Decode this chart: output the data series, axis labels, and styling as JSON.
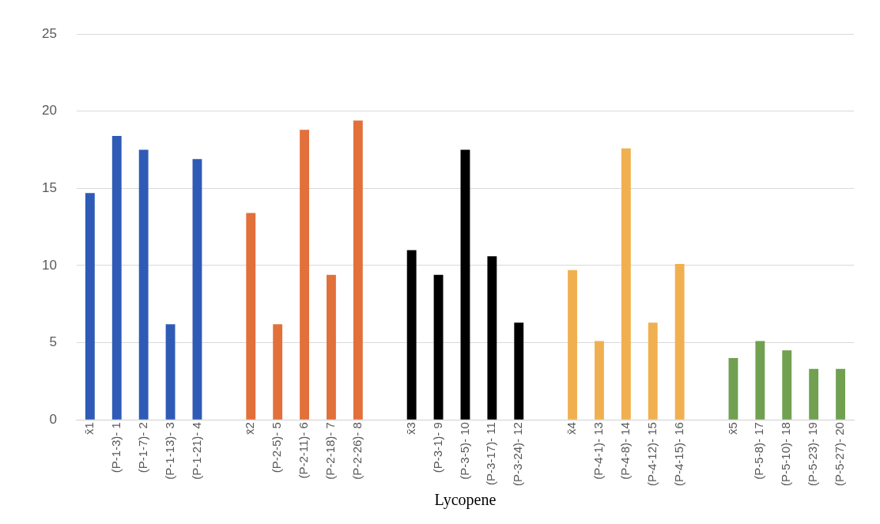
{
  "chart_data": {
    "type": "bar",
    "xlabel": "Lycopene",
    "categories": [
      "x̄1",
      "(P-1-3)- 1",
      "(P-1-7)- 2",
      "(P-1-13)- 3",
      "(P-1-21)- 4",
      null,
      "x̄2",
      "(P-2-5)- 5",
      "(P-2-11)- 6",
      "(P-2-18)- 7",
      "(P-2-26)- 8",
      null,
      "x̄3",
      "(P-3-1)- 9",
      "(P-3-5)- 10",
      "(P-3-17)- 11",
      "(P-3-24)- 12",
      null,
      "x̄4",
      "(P-4-1)- 13",
      "(P-4-8)- 14",
      "(P-4-12)- 15",
      "(P-4-15)- 16",
      null,
      "x̄5",
      "(P-5-8)- 17",
      "(P-5-10)- 18",
      "(P-5-23)- 19",
      "(P-5-27)- 20"
    ],
    "values": [
      14.7,
      18.4,
      17.5,
      6.2,
      16.9,
      null,
      13.4,
      6.2,
      18.8,
      9.4,
      19.4,
      null,
      11.0,
      9.4,
      17.5,
      10.6,
      6.3,
      null,
      9.7,
      5.1,
      17.6,
      6.3,
      10.1,
      null,
      4.0,
      5.1,
      4.5,
      3.3,
      3.3
    ],
    "colors": [
      "#2f5bb7",
      "#2f5bb7",
      "#2f5bb7",
      "#2f5bb7",
      "#2f5bb7",
      null,
      "#e2703a",
      "#e2703a",
      "#e2703a",
      "#e2703a",
      "#e2703a",
      null,
      "#000000",
      "#000000",
      "#000000",
      "#000000",
      "#000000",
      null,
      "#f0b050",
      "#f0b050",
      "#f0b050",
      "#f0b050",
      "#f0b050",
      null,
      "#70a050",
      "#70a050",
      "#70a050",
      "#70a050",
      "#70a050"
    ],
    "ylim": [
      0,
      25
    ],
    "yticks": [
      0,
      5,
      10,
      15,
      20,
      25
    ],
    "grid": "y",
    "legend": false
  }
}
